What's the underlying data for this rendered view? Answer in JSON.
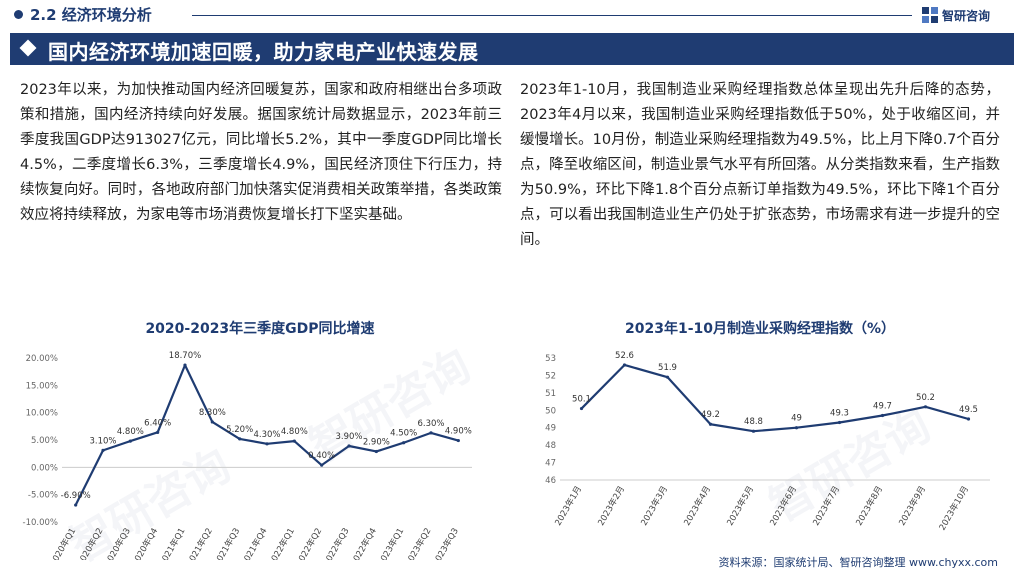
{
  "header": {
    "section_title": "2.2 经济环境分析",
    "logo_text": "智研咨询"
  },
  "banner": {
    "title": "国内经济环境加速回暖，助力家电产业快速发展"
  },
  "text": {
    "left_paragraph": "2023年以来，为加快推动国内经济回暖复苏，国家和政府相继出台多项政策和措施，国内经济持续向好发展。据国家统计局数据显示，2023年前三季度我国GDP达913027亿元，同比增长5.2%，其中一季度GDP同比增长4.5%，二季度增长6.3%，三季度增长4.9%，国民经济顶住下行压力，持续恢复向好。同时，各地政府部门加快落实促消费相关政策举措，各类政策效应将持续释放，为家电等市场消费恢复增长打下坚实基础。",
    "right_paragraph": "2023年1-10月，我国制造业采购经理指数总体呈现出先升后降的态势，2023年4月以来，我国制造业采购经理指数低于50%，处于收缩区间，并缓慢增长。10月份，制造业采购经理指数为49.5%，比上月下降0.7个百分点，降至收缩区间，制造业景气水平有所回落。从分类指数来看，生产指数为50.9%，环比下降1.8个百分点新订单指数为49.5%，环比下降1个百分点，可以看出我国制造业生产仍处于扩张态势，市场需求有进一步提升的空间。"
  },
  "footer": {
    "source": "资料来源：国家统计局、智研咨询整理  www.chyxx.com"
  },
  "colors": {
    "primary": "#1f3c72",
    "line": "#1f3c72"
  },
  "watermark": "智研咨询",
  "chart_data": [
    {
      "type": "line",
      "title": "2020-2023年三季度GDP同比增速",
      "categories": [
        "2020年Q1",
        "2020年Q2",
        "2020年Q3",
        "2020年Q4",
        "2021年Q1",
        "2021年Q2",
        "2021年Q3",
        "2021年Q4",
        "2022年Q1",
        "2022年Q2",
        "2022年Q3",
        "2022年Q4",
        "2023年Q1",
        "2023年Q2",
        "2023年Q3"
      ],
      "values": [
        -6.9,
        3.1,
        4.8,
        6.4,
        18.7,
        8.3,
        5.2,
        4.3,
        4.8,
        0.4,
        3.9,
        2.9,
        4.5,
        6.3,
        4.9
      ],
      "data_labels": [
        "-6.90%",
        "3.10%",
        "4.80%",
        "6.40%",
        "18.70%",
        "8.30%",
        "5.20%",
        "4.30%",
        "4.80%",
        "0.40%",
        "3.90%",
        "2.90%",
        "4.50%",
        "6.30%",
        "4.90%"
      ],
      "yticks": [
        "20.00%",
        "15.00%",
        "10.00%",
        "5.00%",
        "0.00%",
        "-5.00%",
        "-10.00%"
      ],
      "ylim": [
        -10,
        20
      ],
      "grid": false,
      "legend": "none"
    },
    {
      "type": "line",
      "title": "2023年1-10月制造业采购经理指数（%）",
      "categories": [
        "2023年1月",
        "2023年2月",
        "2023年3月",
        "2023年4月",
        "2023年5月",
        "2023年6月",
        "2023年7月",
        "2023年8月",
        "2023年9月",
        "2023年10月"
      ],
      "values": [
        50.1,
        52.6,
        51.9,
        49.2,
        48.8,
        49,
        49.3,
        49.7,
        50.2,
        49.5
      ],
      "data_labels": [
        "50.1",
        "52.6",
        "51.9",
        "49.2",
        "48.8",
        "49",
        "49.3",
        "49.7",
        "50.2",
        "49.5"
      ],
      "yticks": [
        "53",
        "52",
        "51",
        "50",
        "49",
        "48",
        "47",
        "46"
      ],
      "ylim": [
        46,
        53
      ],
      "grid": false,
      "legend": "none"
    }
  ]
}
